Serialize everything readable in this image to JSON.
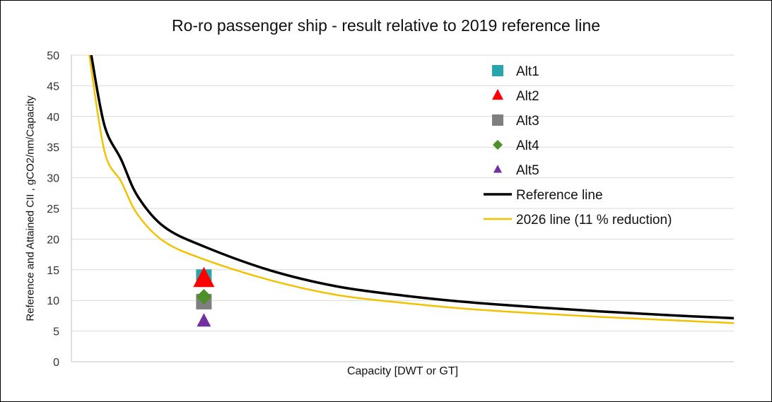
{
  "chart_data": {
    "type": "scatter",
    "title": "Ro-ro passenger ship - result relative to 2019 reference line",
    "xlabel": "Capacity [DWT or GT]",
    "ylabel": "Reference and Attained CII , gCO2/nm/Capacity",
    "ylim": [
      0,
      50
    ],
    "yticks": [
      "0",
      "5",
      "10",
      "15",
      "20",
      "25",
      "30",
      "35",
      "40",
      "45",
      "50"
    ],
    "xlim": [
      0,
      1
    ],
    "grid": "horizontal",
    "legend_position": "top-right",
    "series": [
      {
        "name": "Alt1",
        "kind": "marker",
        "marker": "square",
        "color": "#2aa3ad",
        "points": [
          [
            0.2,
            13.8
          ]
        ]
      },
      {
        "name": "Alt2",
        "kind": "marker",
        "marker": "triangle",
        "color": "#ff0000",
        "points": [
          [
            0.2,
            13.5
          ]
        ]
      },
      {
        "name": "Alt3",
        "kind": "marker",
        "marker": "square",
        "color": "#7f7f7f",
        "points": [
          [
            0.2,
            9.8
          ]
        ]
      },
      {
        "name": "Alt4",
        "kind": "marker",
        "marker": "diamond",
        "color": "#4e8f2a",
        "points": [
          [
            0.2,
            10.6
          ]
        ]
      },
      {
        "name": "Alt5",
        "kind": "marker",
        "marker": "triangle-small",
        "color": "#7030a0",
        "points": [
          [
            0.2,
            6.6
          ]
        ]
      },
      {
        "name": "Reference line",
        "kind": "line",
        "color": "#000000",
        "points": [
          [
            0.03,
            50
          ],
          [
            0.05,
            38.5
          ],
          [
            0.075,
            33
          ],
          [
            0.1,
            27
          ],
          [
            0.14,
            22
          ],
          [
            0.2,
            18.8
          ],
          [
            0.3,
            14.9
          ],
          [
            0.4,
            12.3
          ],
          [
            0.5,
            10.8
          ],
          [
            0.6,
            9.7
          ],
          [
            0.7,
            8.9
          ],
          [
            0.8,
            8.2
          ],
          [
            0.9,
            7.6
          ],
          [
            1.0,
            7.1
          ]
        ]
      },
      {
        "name": "2026 line (11 % reduction)",
        "kind": "line",
        "color": "#f2c200",
        "points": [
          [
            0.027,
            50
          ],
          [
            0.05,
            34.3
          ],
          [
            0.075,
            29.4
          ],
          [
            0.1,
            24
          ],
          [
            0.14,
            19.6
          ],
          [
            0.2,
            16.7
          ],
          [
            0.3,
            13.3
          ],
          [
            0.4,
            10.9
          ],
          [
            0.5,
            9.6
          ],
          [
            0.6,
            8.6
          ],
          [
            0.7,
            7.9
          ],
          [
            0.8,
            7.3
          ],
          [
            0.9,
            6.8
          ],
          [
            1.0,
            6.3
          ]
        ]
      }
    ]
  }
}
